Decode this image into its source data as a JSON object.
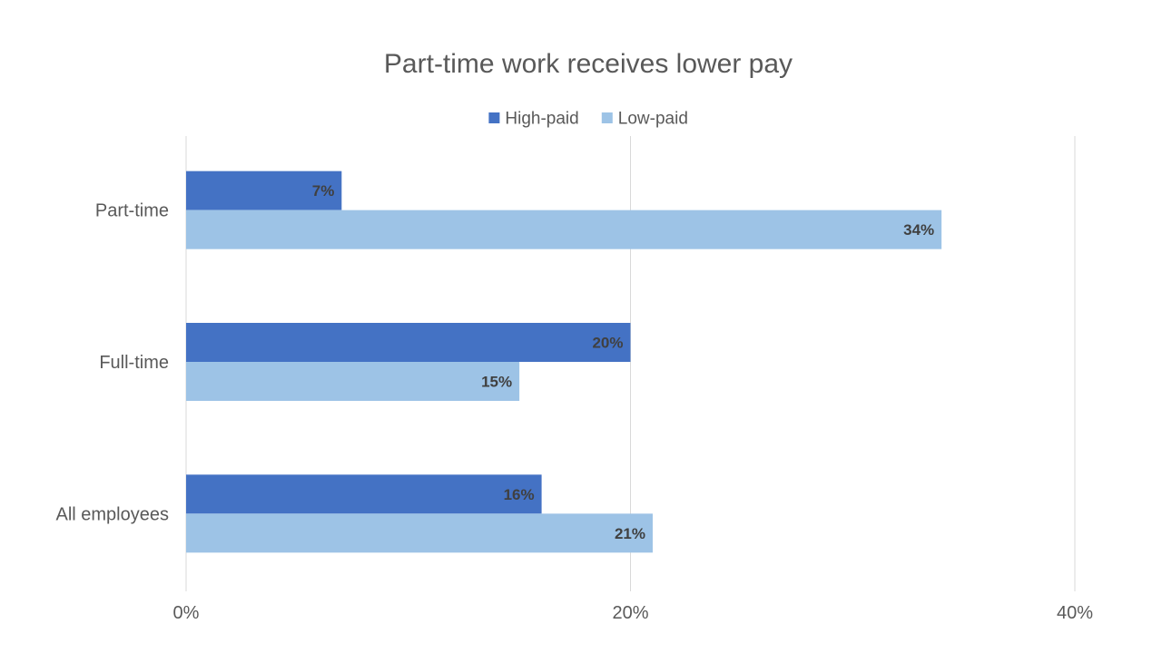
{
  "chart_data": {
    "type": "bar",
    "orientation": "horizontal",
    "title": "Part-time work receives lower pay",
    "categories": [
      "Part-time",
      "Full-time",
      "All employees"
    ],
    "series": [
      {
        "name": "High-paid",
        "values": [
          7,
          20,
          16
        ],
        "labels": [
          "7%",
          "20%",
          "16%"
        ],
        "color": "#4472c4"
      },
      {
        "name": "Low-paid",
        "values": [
          34,
          15,
          21
        ],
        "labels": [
          "34%",
          "15%",
          "21%"
        ],
        "color": "#9dc3e6"
      }
    ],
    "xlim": [
      0,
      40
    ],
    "xticks": [
      0,
      20,
      40
    ],
    "xtick_labels": [
      "0%",
      "20%",
      "40%"
    ],
    "grid": true,
    "legend": "top-center"
  }
}
